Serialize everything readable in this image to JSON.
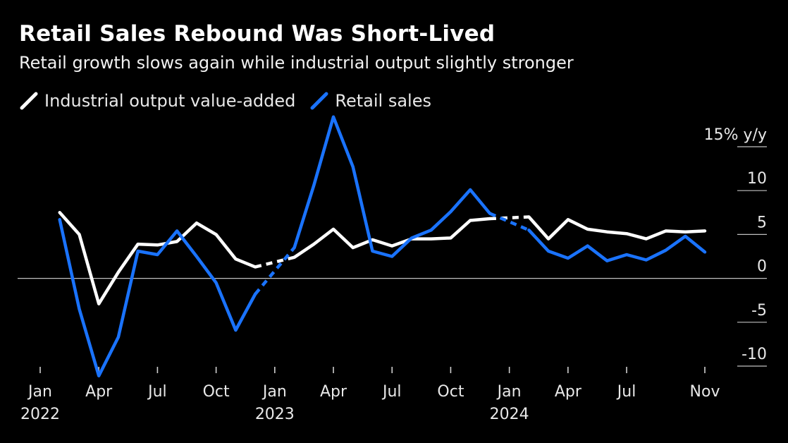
{
  "title": "Retail Sales Rebound Was Short-Lived",
  "subtitle": "Retail growth slows again while industrial output slightly stronger",
  "chart_data": {
    "type": "line",
    "unit_label": "15% y/y",
    "y_ticks": [
      {
        "value": 15,
        "label": "15% y/y"
      },
      {
        "value": 10,
        "label": "10"
      },
      {
        "value": 5,
        "label": "5"
      },
      {
        "value": 0,
        "label": "0"
      },
      {
        "value": -5,
        "label": "-5"
      },
      {
        "value": -10,
        "label": "-10"
      }
    ],
    "ylim": [
      -11,
      16
    ],
    "x_ticks": [
      {
        "month": "2022-01",
        "label": "Jan",
        "year": "2022"
      },
      {
        "month": "2022-04",
        "label": "Apr",
        "year": ""
      },
      {
        "month": "2022-07",
        "label": "Jul",
        "year": ""
      },
      {
        "month": "2022-10",
        "label": "Oct",
        "year": ""
      },
      {
        "month": "2023-01",
        "label": "Jan",
        "year": "2023"
      },
      {
        "month": "2023-04",
        "label": "Apr",
        "year": ""
      },
      {
        "month": "2023-07",
        "label": "Jul",
        "year": ""
      },
      {
        "month": "2023-10",
        "label": "Oct",
        "year": ""
      },
      {
        "month": "2024-01",
        "label": "Jan",
        "year": "2024"
      },
      {
        "month": "2024-04",
        "label": "Apr",
        "year": ""
      },
      {
        "month": "2024-07",
        "label": "Jul",
        "year": ""
      },
      {
        "month": "2024-11",
        "label": "Nov",
        "year": ""
      }
    ],
    "xlim": [
      "2022-01",
      "2024-11"
    ],
    "series": [
      {
        "name": "Industrial output value-added",
        "color": "#ffffff",
        "points": [
          {
            "x": "2022-02",
            "y": 7.5
          },
          {
            "x": "2022-03",
            "y": 5.0
          },
          {
            "x": "2022-04",
            "y": -2.9
          },
          {
            "x": "2022-05",
            "y": 0.7
          },
          {
            "x": "2022-06",
            "y": 3.9
          },
          {
            "x": "2022-07",
            "y": 3.8
          },
          {
            "x": "2022-08",
            "y": 4.2
          },
          {
            "x": "2022-09",
            "y": 6.3
          },
          {
            "x": "2022-10",
            "y": 5.0
          },
          {
            "x": "2022-11",
            "y": 2.2
          },
          {
            "x": "2022-12",
            "y": 1.3,
            "gap_after": true
          },
          {
            "x": "2023-02",
            "y": 2.4
          },
          {
            "x": "2023-03",
            "y": 3.9
          },
          {
            "x": "2023-04",
            "y": 5.6
          },
          {
            "x": "2023-05",
            "y": 3.5
          },
          {
            "x": "2023-06",
            "y": 4.4
          },
          {
            "x": "2023-07",
            "y": 3.7
          },
          {
            "x": "2023-08",
            "y": 4.5
          },
          {
            "x": "2023-09",
            "y": 4.5
          },
          {
            "x": "2023-10",
            "y": 4.6
          },
          {
            "x": "2023-11",
            "y": 6.6
          },
          {
            "x": "2023-12",
            "y": 6.8,
            "gap_after": true
          },
          {
            "x": "2024-02",
            "y": 7.0
          },
          {
            "x": "2024-03",
            "y": 4.5
          },
          {
            "x": "2024-04",
            "y": 6.7
          },
          {
            "x": "2024-05",
            "y": 5.6
          },
          {
            "x": "2024-06",
            "y": 5.3
          },
          {
            "x": "2024-07",
            "y": 5.1
          },
          {
            "x": "2024-08",
            "y": 4.5
          },
          {
            "x": "2024-09",
            "y": 5.4
          },
          {
            "x": "2024-10",
            "y": 5.3
          },
          {
            "x": "2024-11",
            "y": 5.4
          }
        ]
      },
      {
        "name": "Retail sales",
        "color": "#1a73ff",
        "points": [
          {
            "x": "2022-02",
            "y": 6.7
          },
          {
            "x": "2022-03",
            "y": -3.5
          },
          {
            "x": "2022-04",
            "y": -11.1
          },
          {
            "x": "2022-05",
            "y": -6.7
          },
          {
            "x": "2022-06",
            "y": 3.1
          },
          {
            "x": "2022-07",
            "y": 2.7
          },
          {
            "x": "2022-08",
            "y": 5.4
          },
          {
            "x": "2022-09",
            "y": 2.5
          },
          {
            "x": "2022-10",
            "y": -0.5
          },
          {
            "x": "2022-11",
            "y": -5.9
          },
          {
            "x": "2022-12",
            "y": -1.8,
            "gap_after": true
          },
          {
            "x": "2023-02",
            "y": 3.5
          },
          {
            "x": "2023-03",
            "y": 10.6
          },
          {
            "x": "2023-04",
            "y": 18.4
          },
          {
            "x": "2023-05",
            "y": 12.7
          },
          {
            "x": "2023-06",
            "y": 3.1
          },
          {
            "x": "2023-07",
            "y": 2.5
          },
          {
            "x": "2023-08",
            "y": 4.6
          },
          {
            "x": "2023-09",
            "y": 5.5
          },
          {
            "x": "2023-10",
            "y": 7.6
          },
          {
            "x": "2023-11",
            "y": 10.1
          },
          {
            "x": "2023-12",
            "y": 7.4,
            "gap_after": true
          },
          {
            "x": "2024-02",
            "y": 5.5
          },
          {
            "x": "2024-03",
            "y": 3.1
          },
          {
            "x": "2024-04",
            "y": 2.3
          },
          {
            "x": "2024-05",
            "y": 3.7
          },
          {
            "x": "2024-06",
            "y": 2.0
          },
          {
            "x": "2024-07",
            "y": 2.7
          },
          {
            "x": "2024-08",
            "y": 2.1
          },
          {
            "x": "2024-09",
            "y": 3.2
          },
          {
            "x": "2024-10",
            "y": 4.8
          },
          {
            "x": "2024-11",
            "y": 3.0
          }
        ]
      }
    ]
  }
}
